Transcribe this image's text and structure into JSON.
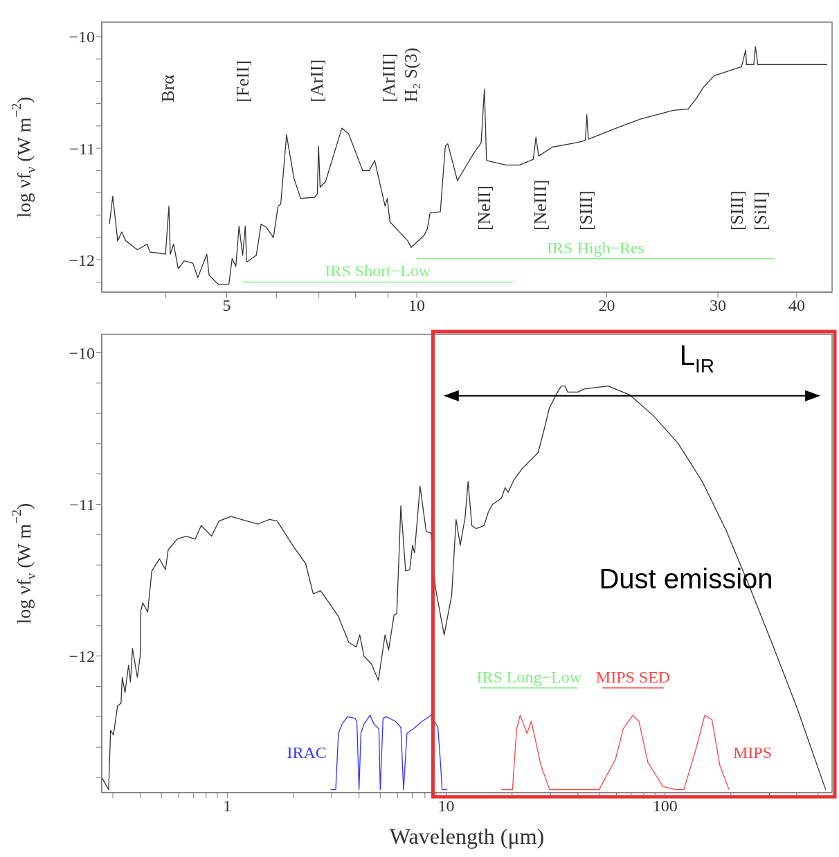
{
  "chart_data": [
    {
      "type": "line",
      "ylabel": "log νf$_{ν}$ (W m$^{−2}$)",
      "log": "x",
      "xlim": [
        3.17,
        45.5
      ],
      "ylim": [
        -12.29,
        -9.87
      ],
      "xticks": [
        {
          "value": 4,
          "label": null
        },
        5,
        {
          "value": 6,
          "label": null
        },
        {
          "value": 7,
          "label": null
        },
        {
          "value": 8,
          "label": null
        },
        {
          "value": 9,
          "label": null
        },
        10,
        20,
        30,
        40
      ],
      "yticks": [
        {
          "value": -12.2,
          "label": null
        },
        {
          "value": -12,
          "label": "−12"
        },
        {
          "value": -11.8,
          "label": null
        },
        {
          "value": -11.6,
          "label": null
        },
        {
          "value": -11.4,
          "label": null
        },
        {
          "value": -11.2,
          "label": null
        },
        {
          "value": -11,
          "label": "−11"
        },
        {
          "value": -10.8,
          "label": null
        },
        {
          "value": -10.6,
          "label": null
        },
        {
          "value": -10.4,
          "label": null
        },
        {
          "value": -10.2,
          "label": null
        },
        {
          "value": -10,
          "label": "−10"
        }
      ],
      "series": [
        {
          "color": "#333333",
          "x": [
            3.26,
            3.3,
            3.36,
            3.41,
            3.46,
            3.61,
            3.74,
            3.78,
            4.0,
            4.05,
            4.07,
            4.12,
            4.19,
            4.28,
            4.42,
            4.5,
            4.65,
            4.69,
            4.85,
            5.04,
            5.1,
            5.17,
            5.23,
            5.3,
            5.35,
            5.38,
            5.57,
            5.67,
            5.78,
            5.93,
            6.03,
            6.09,
            6.22,
            6.39,
            6.55,
            6.89,
            6.96,
            6.99,
            7.03,
            7.17,
            7.61,
            7.8,
            8.21,
            8.41,
            8.58,
            8.91,
            8.98,
            9.07,
            9.68,
            9.8,
            10.28,
            10.4,
            10.5,
            10.9,
            11.1,
            11.2,
            11.6,
            12.0,
            12.3,
            12.65,
            12.8,
            12.9,
            13.85,
            14.55,
            15.3,
            15.45,
            15.6,
            16.4,
            17.9,
            18.5,
            18.6,
            18.7,
            20.5,
            22.6,
            25.5,
            26.9,
            27.6,
            28.5,
            29.6,
            32.7,
            33.2,
            33.3,
            34.2,
            34.4,
            34.7,
            40.0,
            44.7
          ],
          "values": [
            -11.68,
            -11.43,
            -11.83,
            -11.75,
            -11.83,
            -11.91,
            -11.86,
            -11.93,
            -11.95,
            -11.52,
            -11.95,
            -11.86,
            -12.08,
            -12.01,
            -12.03,
            -12.16,
            -11.95,
            -12.14,
            -12.22,
            -12.22,
            -11.99,
            -12.06,
            -11.7,
            -11.96,
            -11.7,
            -12.02,
            -11.96,
            -11.68,
            -11.71,
            -11.8,
            -11.52,
            -11.5,
            -10.88,
            -11.27,
            -11.45,
            -11.44,
            -11.41,
            -10.98,
            -11.35,
            -11.3,
            -10.82,
            -10.87,
            -11.2,
            -11.2,
            -11.11,
            -11.52,
            -11.45,
            -11.66,
            -11.83,
            -11.89,
            -11.78,
            -11.72,
            -11.58,
            -11.57,
            -10.98,
            -10.96,
            -11.29,
            -11.15,
            -11.05,
            -10.95,
            -10.47,
            -11.11,
            -11.15,
            -11.15,
            -11.1,
            -10.9,
            -11.07,
            -10.99,
            -10.95,
            -10.93,
            -10.7,
            -10.92,
            -10.83,
            -10.74,
            -10.66,
            -10.65,
            -10.57,
            -10.45,
            -10.35,
            -10.27,
            -10.12,
            -10.25,
            -10.25,
            -10.09,
            -10.25,
            -10.25,
            -10.25
          ]
        },
        {
          "name": "IRS Short−Low",
          "color": "#80f080",
          "x": [
            5.3,
            14.2
          ],
          "values": [
            -12.2,
            -12.2
          ]
        },
        {
          "name": "IRS High−Res",
          "color": "#80f080",
          "x": [
            10.0,
            36.9
          ],
          "values": [
            -11.99,
            -11.99
          ]
        }
      ],
      "annotations": [
        "Brα",
        "[FeII]",
        "[ArII]",
        "[ArIII]",
        "H₂ S(3)",
        "[NeII]",
        "[NeIII]",
        "[SIII]",
        "[SIII]",
        "[SiII]"
      ]
    },
    {
      "type": "line",
      "xlabel": "Wavelength (μm)",
      "ylabel": "log νf$_{ν}$ (W m$^{−2}$)",
      "log": "x",
      "xlim": [
        0.267,
        580
      ],
      "ylim": [
        -12.9,
        -9.88
      ],
      "xticks": [
        {
          "value": 0.3,
          "label": null
        },
        {
          "value": 0.4,
          "label": null
        },
        {
          "value": 0.5,
          "label": null
        },
        {
          "value": 0.6,
          "label": null
        },
        {
          "value": 0.7,
          "label": null
        },
        {
          "value": 0.8,
          "label": null
        },
        {
          "value": 0.9,
          "label": null
        },
        1,
        {
          "value": 2,
          "label": null
        },
        {
          "value": 3,
          "label": null
        },
        {
          "value": 4,
          "label": null
        },
        {
          "value": 5,
          "label": null
        },
        {
          "value": 6,
          "label": null
        },
        {
          "value": 7,
          "label": null
        },
        {
          "value": 8,
          "label": null
        },
        {
          "value": 9,
          "label": null
        },
        10,
        {
          "value": 20,
          "label": null
        },
        {
          "value": 30,
          "label": null
        },
        {
          "value": 40,
          "label": null
        },
        {
          "value": 50,
          "label": null
        },
        {
          "value": 60,
          "label": null
        },
        {
          "value": 70,
          "label": null
        },
        {
          "value": 80,
          "label": null
        },
        {
          "value": 90,
          "label": null
        },
        100,
        {
          "value": 200,
          "label": null
        },
        {
          "value": 300,
          "label": null
        },
        {
          "value": 400,
          "label": null
        },
        {
          "value": 500,
          "label": null
        }
      ],
      "yticks": [
        {
          "value": -12.8,
          "label": null
        },
        {
          "value": -12.6,
          "label": null
        },
        {
          "value": -12.4,
          "label": null
        },
        {
          "value": -12.2,
          "label": null
        },
        {
          "value": -12,
          "label": "−12"
        },
        {
          "value": -11.8,
          "label": null
        },
        {
          "value": -11.6,
          "label": null
        },
        {
          "value": -11.4,
          "label": null
        },
        {
          "value": -11.2,
          "label": null
        },
        {
          "value": -11,
          "label": "−11"
        },
        {
          "value": -10.8,
          "label": null
        },
        {
          "value": -10.6,
          "label": null
        },
        {
          "value": -10.4,
          "label": null
        },
        {
          "value": -10.2,
          "label": null
        },
        {
          "value": -10,
          "label": "−10"
        }
      ],
      "series": [
        {
          "color": "#333333",
          "x": [
            0.267,
            0.287,
            0.293,
            0.302,
            0.315,
            0.327,
            0.331,
            0.341,
            0.354,
            0.361,
            0.369,
            0.388,
            0.4,
            0.403,
            0.411,
            0.433,
            0.452,
            0.49,
            0.522,
            0.537,
            0.59,
            0.649,
            0.713,
            0.76,
            0.847,
            0.917,
            1.04,
            1.38,
            1.56,
            1.69,
            2.01,
            2.28,
            2.47,
            2.67,
            3.02,
            3.22,
            3.59,
            3.88,
            4.03,
            4.21,
            4.55,
            4.9,
            5.26,
            5.46,
            5.78,
            5.95,
            6.21,
            6.53,
            6.82,
            7.02,
            7.17,
            7.6,
            8.11,
            8.53,
            8.91,
            9.79,
            10.6,
            11.1,
            11.6,
            12.2,
            12.6,
            13.1,
            13.7,
            14.9,
            15.6,
            16.3,
            17.9,
            18.6,
            19.2,
            20.4,
            22.4,
            26.3,
            27.9,
            29.7,
            32.6,
            33.6,
            34.9,
            35.9,
            40.0,
            42.7,
            55.0,
            69.2,
            89.1,
            115,
            148,
            190,
            243,
            313,
            403,
            542
          ],
          "values": [
            -12.8,
            -12.88,
            -12.49,
            -12.52,
            -12.33,
            -12.31,
            -12.14,
            -12.24,
            -12.06,
            -12.17,
            -11.95,
            -12.14,
            -12.0,
            -11.7,
            -11.65,
            -11.71,
            -11.44,
            -11.36,
            -11.43,
            -11.3,
            -11.23,
            -11.21,
            -11.23,
            -11.14,
            -11.21,
            -11.11,
            -11.08,
            -11.13,
            -11.1,
            -11.11,
            -11.28,
            -11.39,
            -11.59,
            -11.57,
            -11.68,
            -11.74,
            -11.91,
            -11.94,
            -11.86,
            -12.0,
            -12.05,
            -12.16,
            -11.86,
            -11.96,
            -11.73,
            -11.72,
            -11.01,
            -11.44,
            -11.43,
            -11.27,
            -11.32,
            -10.88,
            -11.18,
            -11.19,
            -11.54,
            -11.86,
            -11.6,
            -11.1,
            -11.27,
            -11.09,
            -10.85,
            -11.14,
            -11.16,
            -11.14,
            -11.05,
            -11.0,
            -10.96,
            -10.89,
            -10.92,
            -10.84,
            -10.76,
            -10.66,
            -10.52,
            -10.36,
            -10.25,
            -10.22,
            -10.22,
            -10.26,
            -10.26,
            -10.24,
            -10.22,
            -10.28,
            -10.42,
            -10.6,
            -10.85,
            -11.17,
            -11.54,
            -11.94,
            -12.35,
            -12.88
          ]
        },
        {
          "name": "IRAC",
          "color": "#3333ff",
          "x": [
            2.97,
            3.13,
            3.22,
            3.34,
            3.54,
            3.83,
            3.91,
            4.0,
            4.08,
            4.21,
            4.49,
            4.69,
            4.93,
            5.0,
            5.15,
            5.34,
            5.86,
            6.21,
            6.39,
            6.62,
            7.07,
            7.77,
            8.53,
            9.17,
            9.44,
            9.58,
            10.1
          ],
          "values": [
            -12.88,
            -12.88,
            -12.51,
            -12.45,
            -12.4,
            -12.41,
            -12.43,
            -12.88,
            -12.51,
            -12.45,
            -12.39,
            -12.45,
            -12.48,
            -12.88,
            -12.41,
            -12.4,
            -12.43,
            -12.47,
            -12.88,
            -12.51,
            -12.48,
            -12.43,
            -12.39,
            -12.47,
            -12.72,
            -12.88,
            -12.88
          ]
        },
        {
          "name": "MIPS",
          "color": "#ff4444",
          "x": [
            17.9,
            20.1,
            21.0,
            21.8,
            23.4,
            24.5,
            27.1,
            29.7,
            50.0,
            59.4,
            64.4,
            71.3,
            76.0,
            83.5,
            97.9,
            111,
            122,
            138,
            152,
            164,
            178,
            196
          ],
          "values": [
            -12.88,
            -12.88,
            -12.48,
            -12.39,
            -12.51,
            -12.43,
            -12.72,
            -12.88,
            -12.88,
            -12.68,
            -12.48,
            -12.39,
            -12.43,
            -12.7,
            -12.86,
            -12.88,
            -12.88,
            -12.62,
            -12.39,
            -12.42,
            -12.72,
            -12.88
          ]
        },
        {
          "name": "IRS Long−Low",
          "color": "#80f080",
          "x": [
            14.3,
            40.0
          ],
          "values": [
            -12.21,
            -12.21
          ]
        },
        {
          "name": "MIPS SED",
          "color": "#ff4444",
          "x": [
            51.8,
            98.6
          ],
          "values": [
            -12.21,
            -12.21
          ]
        }
      ],
      "annotations": [
        "L$_{IR}$",
        "Dust emission"
      ]
    }
  ]
}
